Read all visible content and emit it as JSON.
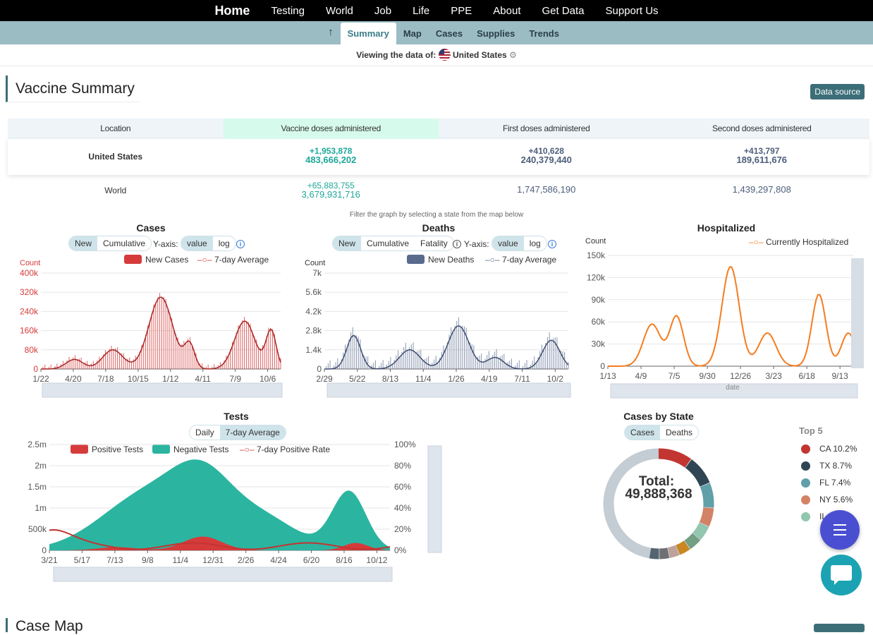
{
  "topnav": [
    "Home",
    "Testing",
    "World",
    "Job",
    "Life",
    "PPE",
    "About",
    "Get Data",
    "Support Us"
  ],
  "subnav": {
    "up_icon": "arrow-up-icon",
    "tabs": [
      "Summary",
      "Map",
      "Cases",
      "Supplies",
      "Trends"
    ],
    "active": "Summary"
  },
  "viewing": {
    "prefix": "Viewing the data of:",
    "country": "United States"
  },
  "section": {
    "title": "Vaccine Summary",
    "data_source": "Data source"
  },
  "vaccine_table": {
    "headers": [
      "Location",
      "Vaccine doses administered",
      "First doses administered",
      "Second doses administered"
    ],
    "rows": [
      {
        "location": "United States",
        "doses_new": "+1,953,878",
        "doses_total": "483,666,202",
        "first_new": "+410,628",
        "first_total": "240,379,440",
        "second_new": "+413,797",
        "second_total": "189,611,676"
      },
      {
        "location": "World",
        "doses_new": "+65,883,755",
        "doses_total": "3,679,931,716",
        "first_total": "1,747,586,190",
        "second_total": "1,439,297,808"
      }
    ]
  },
  "filter_note": "Filter the graph by selecting a state from the map below",
  "charts": {
    "cases": {
      "title": "Cases",
      "toggle": [
        "New",
        "Cumulative"
      ],
      "yaxis_label": "Y-axis:",
      "yaxis_toggle": [
        "value",
        "log"
      ],
      "legend": [
        "New Cases",
        "7-day Average"
      ],
      "unit": "Count",
      "yticks": [
        "400k",
        "320k",
        "240k",
        "160k",
        "80k",
        "0"
      ],
      "xticks": [
        "1/22",
        "4/20",
        "7/18",
        "10/15",
        "1/12",
        "4/11",
        "7/9",
        "10/6"
      ],
      "color": "#d63b3b"
    },
    "deaths": {
      "title": "Deaths",
      "toggle": [
        "New",
        "Cumulative",
        "Fatality"
      ],
      "yaxis_label": "Y-axis:",
      "yaxis_toggle": [
        "value",
        "log"
      ],
      "legend": [
        "New Deaths",
        "7-day Average"
      ],
      "unit": "Count",
      "yticks": [
        "7k",
        "5.6k",
        "4.2k",
        "2.8k",
        "1.4k",
        "0"
      ],
      "xticks": [
        "2/29",
        "5/22",
        "8/13",
        "11/4",
        "1/26",
        "4/19",
        "7/11",
        "10/2"
      ],
      "color": "#5a6a8e"
    },
    "hospitalized": {
      "title": "Hospitalized",
      "legend": [
        "Currently Hospitalized"
      ],
      "unit": "Count",
      "yticks": [
        "150k",
        "120k",
        "90k",
        "60k",
        "30k",
        "0"
      ],
      "xticks": [
        "1/13",
        "4/9",
        "7/5",
        "9/30",
        "12/26",
        "3/23",
        "6/18",
        "9/13"
      ],
      "xlabel": "date",
      "color": "#f57c1f"
    },
    "tests": {
      "title": "Tests",
      "toggle": [
        "Daily",
        "7-day Average"
      ],
      "legend": [
        "Positive Tests",
        "Negative Tests",
        "7-day Positive Rate"
      ],
      "yticks": [
        "2.5m",
        "2m",
        "1.5m",
        "1m",
        "500k",
        "0"
      ],
      "yticks_right": [
        "100%",
        "80%",
        "60%",
        "40%",
        "20%",
        "0%"
      ],
      "xticks": [
        "3/21",
        "5/17",
        "7/13",
        "9/8",
        "11/4",
        "12/31",
        "2/26",
        "4/24",
        "6/20",
        "8/16",
        "10/12"
      ],
      "colors": {
        "positive": "#d63b3b",
        "negative": "#2bb5a0"
      }
    },
    "by_state": {
      "title": "Cases by State",
      "toggle": [
        "Cases",
        "Deaths"
      ],
      "total_label": "Total:",
      "total_value": "49,888,368",
      "top_label": "Top 5",
      "top5": [
        {
          "state": "CA",
          "pct": "10.2%",
          "color": "#c23531"
        },
        {
          "state": "TX",
          "pct": "8.7%",
          "color": "#2f4554"
        },
        {
          "state": "FL",
          "pct": "7.4%",
          "color": "#61a0a8"
        },
        {
          "state": "NY",
          "pct": "5.6%",
          "color": "#d48265"
        },
        {
          "state": "IL",
          "pct": "",
          "color": "#91c7ae"
        }
      ]
    }
  },
  "next_section_title": "Case Map"
}
